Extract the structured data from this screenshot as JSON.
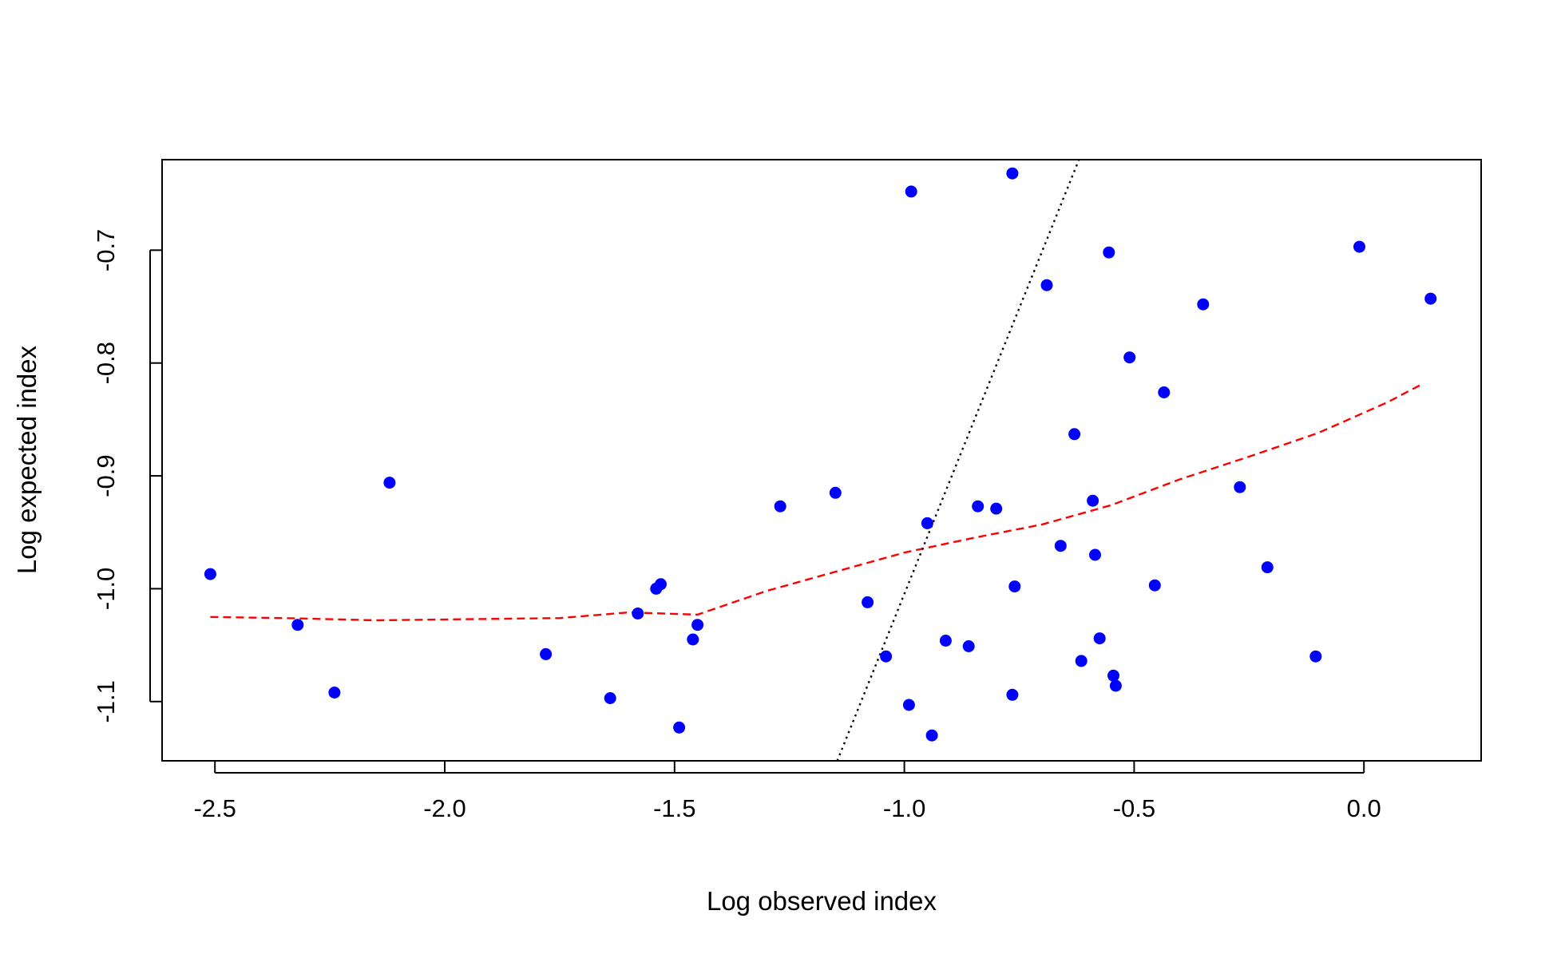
{
  "chart_data": {
    "type": "scatter",
    "title": "",
    "xlabel": "Log observed index",
    "ylabel": "Log expected index",
    "xlim": [
      -2.615,
      0.255
    ],
    "ylim": [
      -1.1525,
      -0.6198
    ],
    "xticks": [
      -2.5,
      -2.0,
      -1.5,
      -1.0,
      -0.5,
      0.0
    ],
    "xtick_labels": [
      "-2.5",
      "-2.0",
      "-1.5",
      "-1.0",
      "-0.5",
      "0.0"
    ],
    "yticks": [
      -1.1,
      -1.0,
      -0.9,
      -0.8,
      -0.7
    ],
    "ytick_labels": [
      "-1.1",
      "-1.0",
      "-0.9",
      "-0.8",
      "-0.7"
    ],
    "grid": false,
    "colors": {
      "points": "#0000ff",
      "smooth": "#ff0000",
      "reference": "#000000"
    },
    "points": [
      [
        -2.51,
        -0.987
      ],
      [
        -2.32,
        -1.032
      ],
      [
        -2.24,
        -1.092
      ],
      [
        -2.12,
        -0.906
      ],
      [
        -1.78,
        -1.058
      ],
      [
        -1.64,
        -1.097
      ],
      [
        -1.58,
        -1.022
      ],
      [
        -1.54,
        -1.0
      ],
      [
        -1.53,
        -0.996
      ],
      [
        -1.49,
        -1.123
      ],
      [
        -1.46,
        -1.045
      ],
      [
        -1.45,
        -1.032
      ],
      [
        -1.27,
        -0.927
      ],
      [
        -1.15,
        -0.915
      ],
      [
        -1.08,
        -1.012
      ],
      [
        -1.04,
        -1.06
      ],
      [
        -0.99,
        -1.103
      ],
      [
        -0.985,
        -0.648
      ],
      [
        -0.95,
        -0.942
      ],
      [
        -0.94,
        -1.13
      ],
      [
        -0.91,
        -1.046
      ],
      [
        -0.86,
        -1.051
      ],
      [
        -0.84,
        -0.927
      ],
      [
        -0.8,
        -0.929
      ],
      [
        -0.765,
        -0.632
      ],
      [
        -0.765,
        -1.094
      ],
      [
        -0.76,
        -0.998
      ],
      [
        -0.69,
        -0.731
      ],
      [
        -0.66,
        -0.962
      ],
      [
        -0.63,
        -0.863
      ],
      [
        -0.615,
        -1.064
      ],
      [
        -0.59,
        -0.922
      ],
      [
        -0.585,
        -0.97
      ],
      [
        -0.575,
        -1.044
      ],
      [
        -0.555,
        -0.702
      ],
      [
        -0.545,
        -1.077
      ],
      [
        -0.54,
        -1.086
      ],
      [
        -0.51,
        -0.795
      ],
      [
        -0.455,
        -0.997
      ],
      [
        -0.435,
        -0.826
      ],
      [
        -0.35,
        -0.748
      ],
      [
        -0.27,
        -0.91
      ],
      [
        -0.21,
        -0.981
      ],
      [
        -0.105,
        -1.06
      ],
      [
        -0.01,
        -0.697
      ],
      [
        0.145,
        -0.743
      ]
    ],
    "series": [
      {
        "style": "dashed",
        "x": [
          -2.51,
          -2.35,
          -2.15,
          -1.95,
          -1.75,
          -1.6,
          -1.45,
          -1.3,
          -1.15,
          -1.0,
          -0.85,
          -0.7,
          -0.55,
          -0.4,
          -0.25,
          -0.1,
          0.05,
          0.13
        ],
        "y": [
          -1.025,
          -1.026,
          -1.028,
          -1.027,
          -1.026,
          -1.021,
          -1.023,
          -1.002,
          -0.985,
          -0.968,
          -0.955,
          -0.943,
          -0.926,
          -0.903,
          -0.883,
          -0.862,
          -0.835,
          -0.818
        ]
      },
      {
        "style": "dotted",
        "x": [
          -1.146,
          -0.62
        ],
        "y": [
          -1.1525,
          -0.6198
        ]
      }
    ]
  }
}
